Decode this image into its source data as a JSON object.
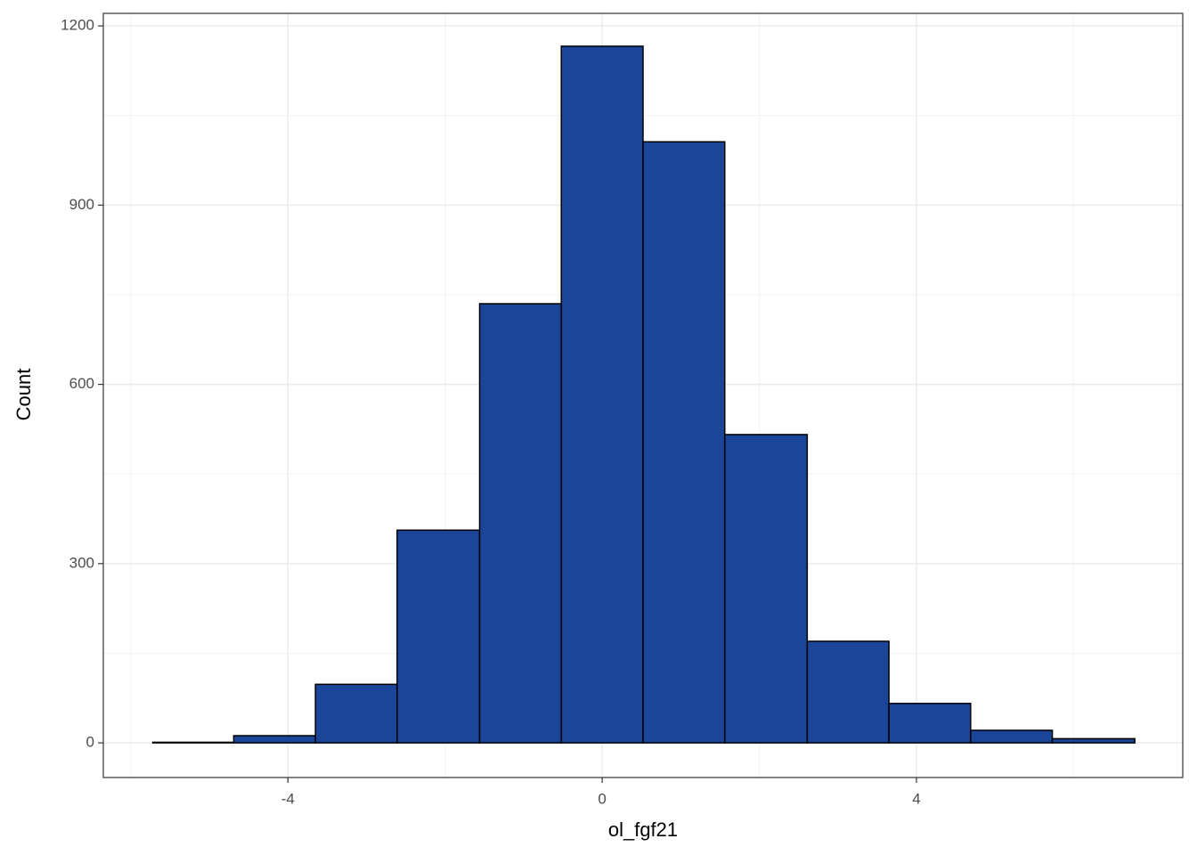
{
  "chart_data": {
    "type": "histogram",
    "x_label": "ol_fgf21",
    "y_label": "Count",
    "bins": [
      -5.72,
      -4.69,
      -3.65,
      -2.61,
      -1.56,
      -0.52,
      0.52,
      1.56,
      2.61,
      3.65,
      4.69,
      5.73,
      6.78
    ],
    "values": [
      1,
      12,
      98,
      356,
      735,
      1166,
      1006,
      516,
      170,
      66,
      21,
      7
    ],
    "color": "#1a4599",
    "edge_color": "#000000",
    "xlim": [
      -6.35,
      7.39
    ],
    "xticks": [
      -4,
      0,
      4
    ],
    "ylim": [
      -58,
      1221
    ],
    "yticks": [
      0,
      300,
      600,
      900,
      1200
    ],
    "grid": true
  }
}
